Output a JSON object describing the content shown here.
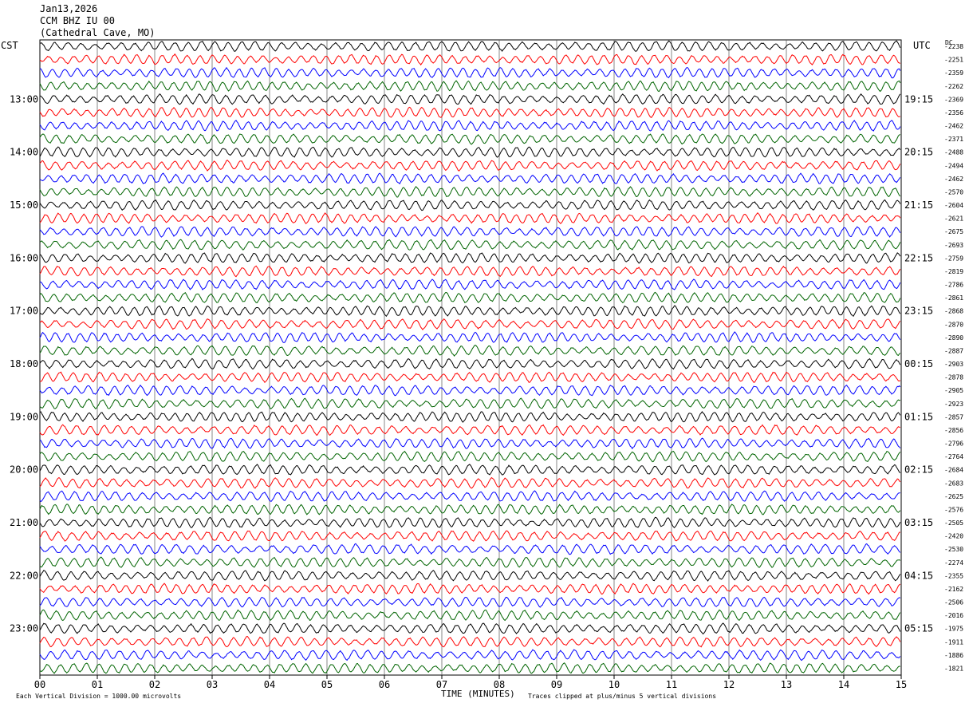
{
  "header": {
    "date": "Jan13,2026",
    "station": "CCM BHZ IU 00",
    "location": "(Cathedral Cave, MO)"
  },
  "left_tz": "CST",
  "right_tz": "UTC",
  "dc_label": "DC",
  "footer": {
    "scale": "Each Vertical Division = 1000.00 microvolts",
    "clip": "Traces clipped at plus/minus 5 vertical divisions"
  },
  "colors": {
    "trace_cycle": [
      "#000000",
      "#ff0000",
      "#0000ff",
      "#006400"
    ],
    "grid": "#000000"
  },
  "chart_data": {
    "type": "line",
    "xlabel": "TIME (MINUTES)",
    "x_range": [
      0,
      15
    ],
    "x_ticks": [
      "00",
      "01",
      "02",
      "03",
      "04",
      "05",
      "06",
      "07",
      "08",
      "09",
      "10",
      "11",
      "12",
      "13",
      "14",
      "15"
    ],
    "rows_per_hour": 4,
    "left_hour_labels": [
      "13:00",
      "14:00",
      "15:00",
      "16:00",
      "17:00",
      "18:00",
      "19:00",
      "20:00",
      "21:00",
      "22:00",
      "23:00"
    ],
    "right_hour_labels": [
      "19:15",
      "20:15",
      "21:15",
      "22:15",
      "23:15",
      "00:15",
      "01:15",
      "02:15",
      "03:15",
      "04:15",
      "05:15"
    ],
    "dc_offsets": [
      "-2238",
      "-2251",
      "-2359",
      "-2262",
      "-2369",
      "-2356",
      "-2462",
      "-2371",
      "-2488",
      "-2494",
      "-2462",
      "-2570",
      "-2604",
      "-2621",
      "-2675",
      "-2693",
      "-2759",
      "-2819",
      "-2786",
      "-2861",
      "-2868",
      "-2870",
      "-2890",
      "-2887",
      "-2903",
      "-2878",
      "-2905",
      "-2923",
      "-2857",
      "-2856",
      "-2796",
      "-2764",
      "-2684",
      "-2683",
      "-2625",
      "-2576",
      "-2505",
      "-2420",
      "-2530",
      "-2274",
      "-2355",
      "-2162",
      "-2506",
      "-2016",
      "-1975",
      "-1911",
      "-1886",
      "-1821"
    ]
  }
}
